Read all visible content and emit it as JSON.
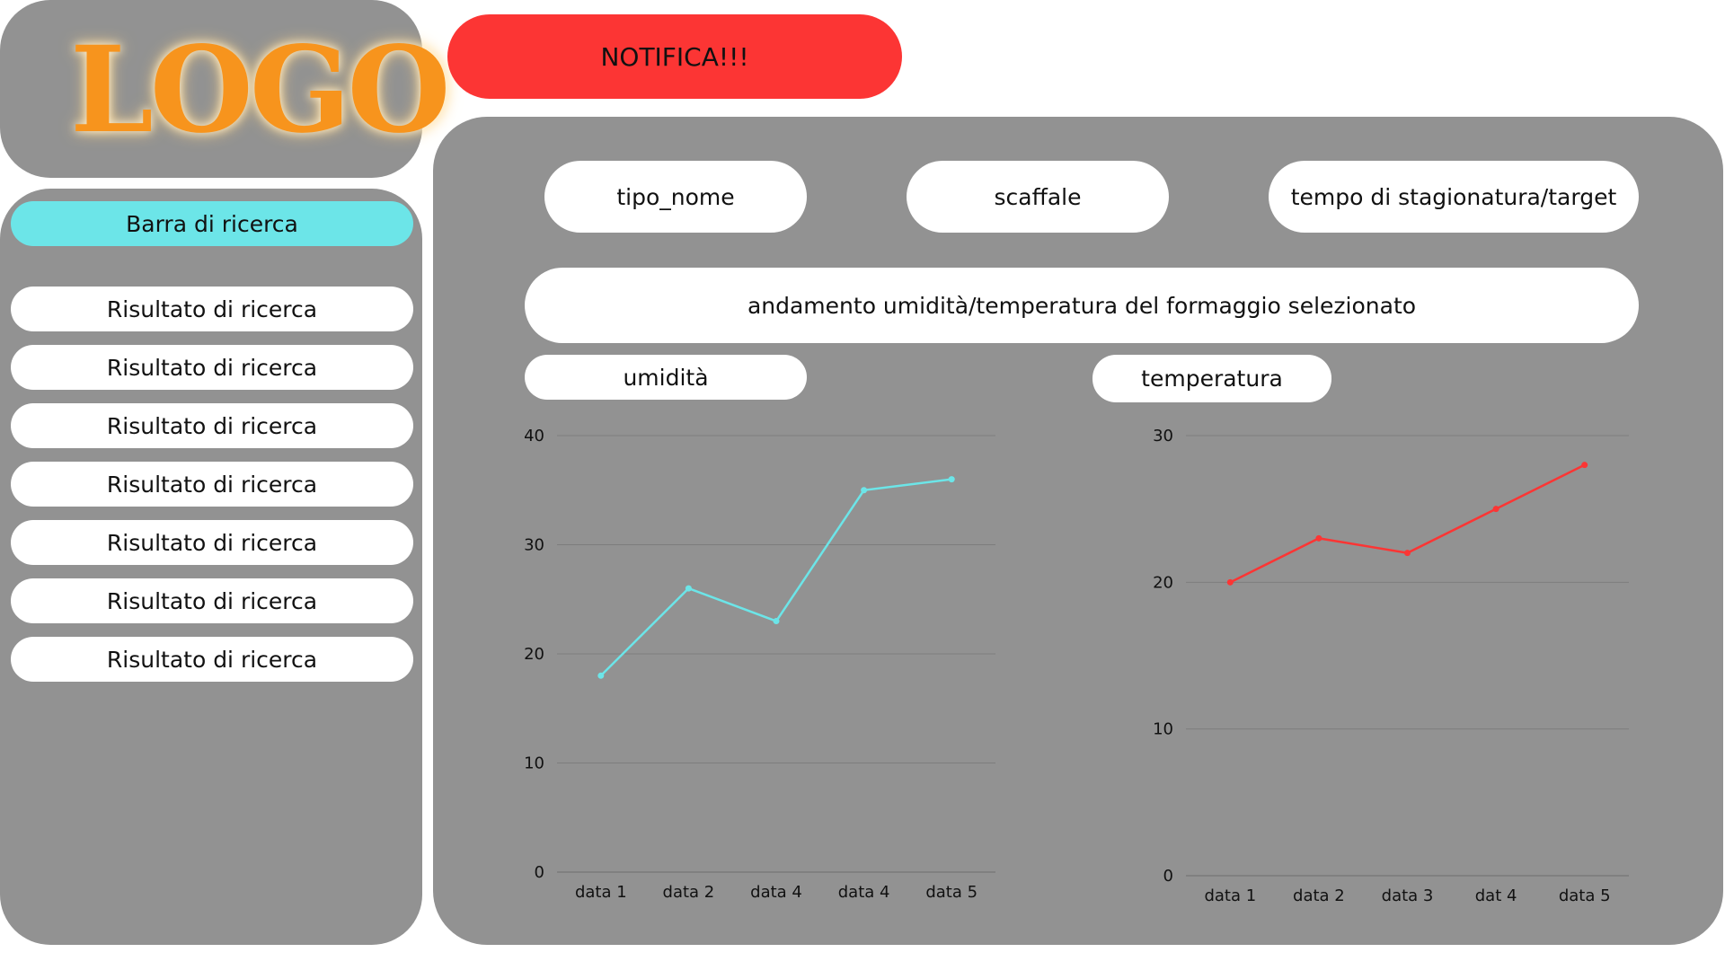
{
  "logo": {
    "text": "LOGO",
    "color": "#f7941d"
  },
  "notification": {
    "label": "NOTIFICA!!!",
    "color": "#fc3534"
  },
  "sidebar": {
    "search_label": "Barra di ricerca",
    "search_color": "#6ce5e8",
    "results": [
      "Risultato di ricerca",
      "Risultato di ricerca",
      "Risultato di ricerca",
      "Risultato di ricerca",
      "Risultato di ricerca",
      "Risultato di ricerca",
      "Risultato di ricerca"
    ]
  },
  "main": {
    "fields": {
      "type_name": "tipo_nome",
      "shelf": "scaffale",
      "aging_time": "tempo di stagionatura/target"
    },
    "trend_title": "andamento umidità/temperatura del formaggio selezionato",
    "humidity_label": "umidità",
    "temperature_label": "temperatura"
  },
  "colors": {
    "panel": "#929292",
    "humidity_line": "#6ce5e8",
    "temperature_line": "#fc3534"
  },
  "chart_data": [
    {
      "type": "line",
      "categories": [
        "data 1",
        "data 2",
        "data 4",
        "data 4",
        "data 5"
      ],
      "values": [
        18,
        26,
        23,
        35,
        36
      ],
      "ylim": [
        0,
        40
      ],
      "yticks": [
        0,
        10,
        20,
        30,
        40
      ],
      "grid": true,
      "color": "#6ce5e8"
    },
    {
      "type": "line",
      "categories": [
        "data 1",
        "data 2",
        "data 3",
        "dat 4",
        "data 5"
      ],
      "values": [
        20,
        23,
        22,
        25,
        28
      ],
      "ylim": [
        0,
        30
      ],
      "yticks": [
        0,
        10,
        20,
        30
      ],
      "grid": true,
      "color": "#fc3534"
    }
  ]
}
